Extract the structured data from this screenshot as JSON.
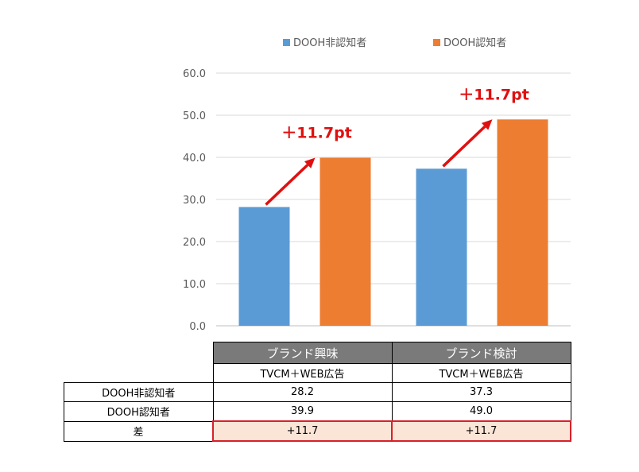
{
  "chart_data": {
    "type": "bar",
    "categories": [
      "ブランド興味",
      "ブランド検討"
    ],
    "series": [
      {
        "name": "DOOH非認知者",
        "values": [
          28.2,
          37.3
        ],
        "color": "#5b9bd5"
      },
      {
        "name": "DOOH認知者",
        "values": [
          39.9,
          49.0
        ],
        "color": "#ed7d31"
      }
    ],
    "ylim": [
      0,
      60
    ],
    "yticks": [
      "0.0",
      "10.0",
      "20.0",
      "30.0",
      "40.0",
      "50.0",
      "60.0"
    ],
    "grid": true,
    "legend_position": "top",
    "annotations": [
      "＋11.7pt",
      "＋11.7pt"
    ],
    "annotation_color": "#e01010"
  },
  "table": {
    "headers": [
      "ブランド興味",
      "ブランド検討"
    ],
    "subheaders": [
      "TVCM＋WEB広告",
      "TVCM＋WEB広告"
    ],
    "rows": [
      {
        "label": "DOOH非認知者",
        "values": [
          "28.2",
          "37.3"
        ]
      },
      {
        "label": "DOOH認知者",
        "values": [
          "39.9",
          "49.0"
        ]
      },
      {
        "label": "差",
        "values": [
          "+11.7",
          "+11.7"
        ]
      }
    ]
  }
}
